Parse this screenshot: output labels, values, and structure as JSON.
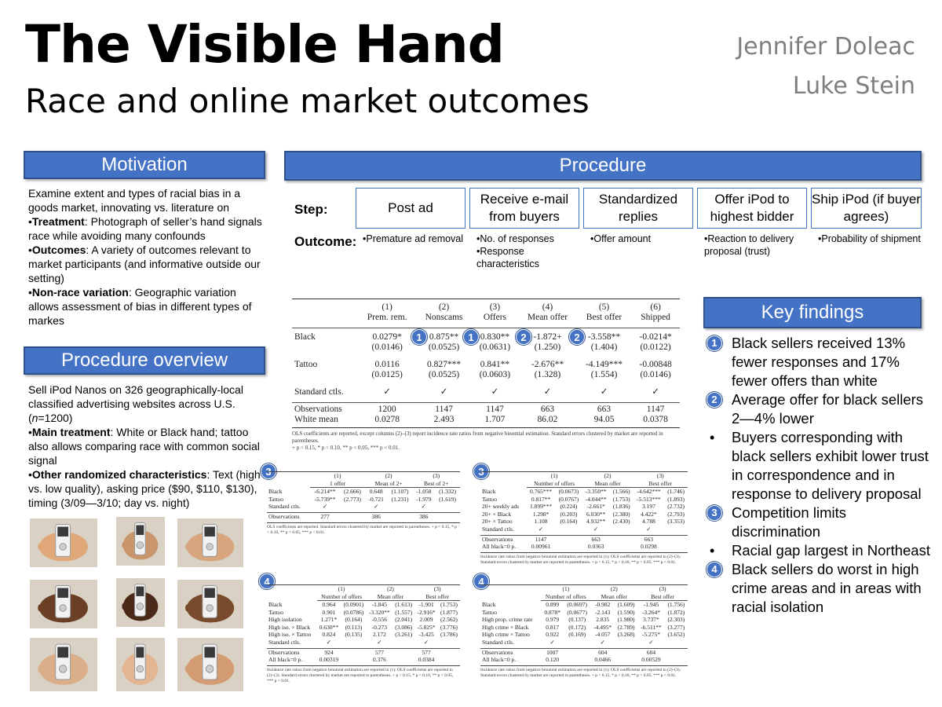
{
  "header": {
    "title": "The Visible Hand",
    "subtitle": "Race and online market outcomes",
    "authors": [
      "Jennifer Doleac",
      "Luke Stein"
    ]
  },
  "motivation": {
    "heading": "Motivation",
    "intro": "Examine extent and types of racial bias in a goods market, innovating vs. literature on",
    "items": [
      {
        "term": "Treatment",
        "text": ": Photograph of seller’s hand signals race while avoiding many confounds"
      },
      {
        "term": "Outcomes",
        "text": ": A variety of outcomes relevant to market participants (and informative outside our setting)"
      },
      {
        "term": "Non-race variation",
        "text": ": Geographic variation allows assessment of bias in different types of markes"
      }
    ]
  },
  "procedure_overview": {
    "heading": "Procedure overview",
    "intro_a": "Sell iPod Nanos on 326 geographically-local classified advertising websites across U.S. (",
    "intro_n": "n",
    "intro_b": "=1200)",
    "items": [
      {
        "term": "Main treatment",
        "text": ": White or Black hand; tattoo also allows comparing race with common social signal"
      },
      {
        "term": "Other randomized characteristics",
        "text": ": Text (high vs. low quality), asking price ($90, $110, $130), timing (3/09—3/10; day vs. night)"
      }
    ],
    "photo_skin": [
      "#e0a878",
      "#c9956b",
      "#d7a67e",
      "#6b3f24",
      "#4a2a18",
      "#7a4a2c",
      "#d9ae88",
      "#e3b591",
      "#d39c72"
    ]
  },
  "procedure": {
    "heading": "Procedure",
    "step_label": "Step:",
    "outcome_label": "Outcome:",
    "steps": [
      {
        "name": "Post ad",
        "outcomes": [
          "•Premature ad removal"
        ]
      },
      {
        "name": "Receive e-mail from buyers",
        "outcomes": [
          "•No. of responses",
          "•Response characteristics"
        ]
      },
      {
        "name": "Standardized replies",
        "outcomes": [
          "•Offer amount"
        ]
      },
      {
        "name": "Offer iPod to highest bidder",
        "outcomes": [
          "•Reaction to delivery proposal (trust)"
        ]
      },
      {
        "name": "Ship iPod (if buyer agrees)",
        "outcomes": [
          "•Probability of shipment"
        ]
      }
    ]
  },
  "main_table": {
    "col_nums": [
      "(1)",
      "(2)",
      "(3)",
      "(4)",
      "(5)",
      "(6)"
    ],
    "col_names": [
      "Prem. rem.",
      "Nonscams",
      "Offers",
      "Mean offer",
      "Best offer",
      "Shipped"
    ],
    "black": [
      "0.0279*",
      "0.875**",
      "0.830**",
      "-1.872+",
      "-3.558**",
      "-0.0214*"
    ],
    "black_se": [
      "(0.0146)",
      "(0.0525)",
      "(0.0631)",
      "(1.250)",
      "(1.404)",
      "(0.0122)"
    ],
    "tattoo": [
      "0.0116",
      "0.827***",
      "0.841**",
      "-2.676**",
      "-4.149***",
      "-0.00848"
    ],
    "tattoo_se": [
      "(0.0125)",
      "(0.0525)",
      "(0.0603)",
      "(1.328)",
      "(1.554)",
      "(0.0146)"
    ],
    "row_labels": [
      "Black",
      "Tattoo",
      "Standard ctls.",
      "Observations",
      "White mean"
    ],
    "ctls": [
      "✓",
      "✓",
      "✓",
      "✓",
      "✓",
      "✓"
    ],
    "obs": [
      "1200",
      "1147",
      "1147",
      "663",
      "663",
      "1147"
    ],
    "white_mean": [
      "0.0278",
      "2.493",
      "1.707",
      "86.02",
      "94.05",
      "0.0378"
    ],
    "badges": [
      "1",
      "1",
      "2",
      "2"
    ],
    "note1": "OLS coefficients are reported, except columns (2)–(3) report incidence rate ratios from negative binomial estimation. Standard errors clustered by market are reported in parentheses.",
    "note2": "+ p < 0.15, * p < 0.10, ** p < 0.05, *** p < 0.01."
  },
  "mini_tables": [
    {
      "badge": "3",
      "cols": [
        [
          "(1)",
          "1 offer"
        ],
        [
          "(2)",
          "Mean of 2+"
        ],
        [
          "(3)",
          "Best of 2+"
        ]
      ],
      "rows": [
        [
          "Black",
          "-6.214**",
          "(2.666)",
          "0.648",
          "(1.107)",
          "-1.058",
          "(1.332)"
        ],
        [
          "Tattoo",
          "-5.739**",
          "(2.773)",
          "-0.721",
          "(1.231)",
          "-1.979",
          "(1.619)"
        ],
        [
          "Standard ctls.",
          "✓",
          "",
          "✓",
          "",
          "✓",
          ""
        ]
      ],
      "foot": [
        [
          "Observations",
          "277",
          "",
          "386",
          "",
          "386",
          ""
        ]
      ],
      "note": "OLS coefficients are reported. Standard errors clustered by market are reported in parentheses. + p < 0.15, * p < 0.10, ** p < 0.05, *** p < 0.01."
    },
    {
      "badge": "3",
      "cols": [
        [
          "(1)",
          "Number of offers"
        ],
        [
          "(2)",
          "Mean offer"
        ],
        [
          "(3)",
          "Best offer"
        ]
      ],
      "rows": [
        [
          "Black",
          "0.765***",
          "(0.0673)",
          "-3.350**",
          "(1.566)",
          "-4.642***",
          "(1.746)"
        ],
        [
          "Tattoo",
          "0.817**",
          "(0.0767)",
          "-4.044**",
          "(1.753)",
          "-5.513***",
          "(1.893)"
        ],
        [
          "20+ weekly ads",
          "1.899***",
          "(0.224)",
          "-2.661*",
          "(1.836)",
          "3.197",
          "(2.732)"
        ],
        [
          "20+ × Black",
          "1.298*",
          "(0.203)",
          "6.030**",
          "(2.380)",
          "4.422*",
          "(2.793)"
        ],
        [
          "20+ × Tattoo",
          "1.108",
          "(0.164)",
          "4.932**",
          "(2.430)",
          "4.788",
          "(3.353)"
        ],
        [
          "Standard ctls.",
          "✓",
          "",
          "✓",
          "",
          "✓",
          ""
        ]
      ],
      "foot": [
        [
          "Observations",
          "1147",
          "",
          "663",
          "",
          "663",
          ""
        ],
        [
          "All black=0 p.",
          "0.00961",
          "",
          "0.0363",
          "",
          "0.0298",
          ""
        ]
      ],
      "note": "Incidence rate ratios from negative binomial estimation are reported in (1); OLS coefficients are reported in (2)–(3). Standard errors clustered by market are reported in parentheses. + p < 0.15, * p < 0.10, ** p < 0.05, *** p < 0.01."
    },
    {
      "badge": "4",
      "cols": [
        [
          "(1)",
          "Number of offers"
        ],
        [
          "(2)",
          "Mean offer"
        ],
        [
          "(3)",
          "Best offer"
        ]
      ],
      "rows": [
        [
          "Black",
          "0.964",
          "(0.0901)",
          "-1.845",
          "(1.613)",
          "-1.901",
          "(1.753)"
        ],
        [
          "Tattoo",
          "0.901",
          "(0.0786)",
          "-3.320**",
          "(1.557)",
          "-2.916*",
          "(1.877)"
        ],
        [
          "High isolation",
          "1.271*",
          "(0.164)",
          "-0.556",
          "(2.041)",
          "2.009",
          "(2.562)"
        ],
        [
          "High iso. × Black",
          "0.630**",
          "(0.113)",
          "-0.273",
          "(3.086)",
          "-5.825*",
          "(3.776)"
        ],
        [
          "High iso. × Tattoo",
          "0.824",
          "(0.135)",
          "2.172",
          "(3.261)",
          "-3.425",
          "(3.786)"
        ],
        [
          "Standard ctls.",
          "✓",
          "",
          "✓",
          "",
          "✓",
          ""
        ]
      ],
      "foot": [
        [
          "Observations",
          "924",
          "",
          "577",
          "",
          "577",
          ""
        ],
        [
          "All black=0 p.",
          "0.00319",
          "",
          "0.376",
          "",
          "0.0384",
          ""
        ]
      ],
      "note": "Incidence rate ratios from negative binomial estimation are reported in (1); OLS coefficients are reported in (2)–(3). Standard errors clustered by market are reported in parentheses. + p < 0.15, * p < 0.10, ** p < 0.05, *** p < 0.01."
    },
    {
      "badge": "4",
      "cols": [
        [
          "(1)",
          "Number of offers"
        ],
        [
          "(2)",
          "Mean offer"
        ],
        [
          "(3)",
          "Best offer"
        ]
      ],
      "rows": [
        [
          "Black",
          "0.899",
          "(0.0697)",
          "-0.982",
          "(1.609)",
          "-1.945",
          "(1.756)"
        ],
        [
          "Tattoo",
          "0.878*",
          "(0.0677)",
          "-2.143",
          "(1.590)",
          "-3.264*",
          "(1.872)"
        ],
        [
          "High prop. crime rate",
          "0.979",
          "(0.137)",
          "2.835",
          "(1.980)",
          "3.737*",
          "(2.303)"
        ],
        [
          "High crime × Black",
          "0.817",
          "(0.172)",
          "-4.495*",
          "(2.789)",
          "-6.511**",
          "(3.277)"
        ],
        [
          "High crime × Tattoo",
          "0.922",
          "(0.169)",
          "-4.057",
          "(3.268)",
          "-5.275*",
          "(3.652)"
        ],
        [
          "Standard ctls.",
          "✓",
          "",
          "✓",
          "",
          "✓",
          ""
        ]
      ],
      "foot": [
        [
          "Observations",
          "1007",
          "",
          "604",
          "",
          "604",
          ""
        ],
        [
          "All black=0 p.",
          "0.120",
          "",
          "0.0466",
          "",
          "0.00529",
          ""
        ]
      ],
      "note": "Incidence rate ratios from negative binomial estimation are reported in (1); OLS coefficients are reported in (2)–(3). Standard errors clustered by market are reported in parentheses. + p < 0.15, * p < 0.10, ** p < 0.05, *** p < 0.01."
    }
  ],
  "key_findings": {
    "heading": "Key findings",
    "items": [
      {
        "marker": "1",
        "text": "Black sellers received 13% fewer responses and 17% fewer offers than white"
      },
      {
        "marker": "2",
        "text": "Average offer for black sellers 2—4% lower"
      },
      {
        "marker": "•",
        "text": "Buyers corresponding with black sellers exhibit lower trust in correspondence and in response to delivery proposal"
      },
      {
        "marker": "3",
        "text": "Competition limits discrimination"
      },
      {
        "marker": "•",
        "text": "Racial gap largest in Northeast"
      },
      {
        "marker": "4",
        "text": "Black sellers do worst in high crime areas and in areas with racial isolation"
      }
    ]
  },
  "colors": {
    "accent": "#4472c4",
    "author": "#7f7f7f"
  }
}
